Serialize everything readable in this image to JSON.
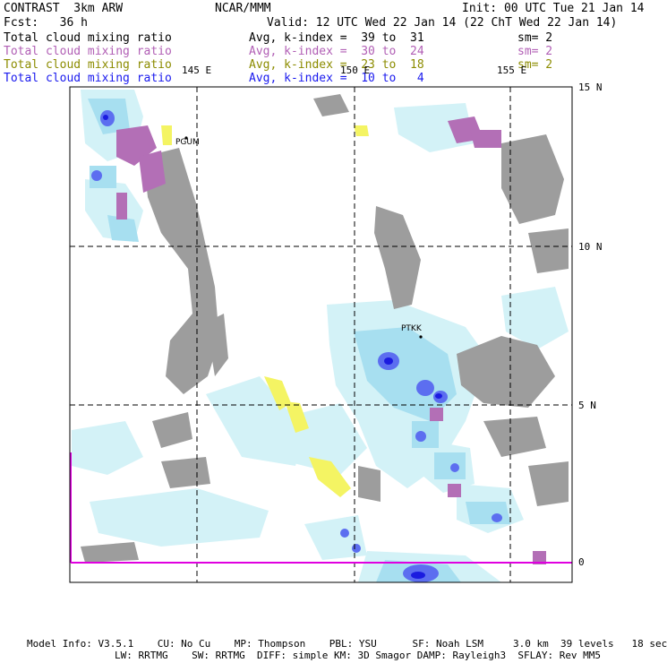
{
  "header": {
    "line1_left": "CONTRAST  3km ARW",
    "line1_mid": "NCAR/MMM",
    "line1_right": "Init: 00 UTC Tue 21 Jan 14",
    "line2_left": "Fcst:   36 h",
    "line2_right": "Valid: 12 UTC Wed 22 Jan 14 (22 ChT Wed 22 Jan 14)"
  },
  "fields": [
    {
      "name": "Total cloud mixing ratio",
      "stat": "Avg, k-index =  39 to  31",
      "sm": "sm= 2",
      "color": "#000000"
    },
    {
      "name": "Total cloud mixing ratio",
      "stat": "Avg, k-index =  30 to  24",
      "sm": "sm= 2",
      "color": "#b15fb5"
    },
    {
      "name": "Total cloud mixing ratio",
      "stat": "Avg, k-index =  23 to  18",
      "sm": "sm= 2",
      "color": "#8c8c00"
    },
    {
      "name": "Total cloud mixing ratio",
      "stat": "Avg, k-index =  10 to   4",
      "sm": "",
      "color": "#1a1aee"
    }
  ],
  "map": {
    "lon_labels": [
      "145 E",
      "150 E",
      "155 E"
    ],
    "lat_labels": [
      "15 N",
      "10 N",
      "5 N",
      "0"
    ],
    "stations": [
      "PGUM",
      "PTKK"
    ]
  },
  "footer": {
    "line1": "Model Info: V3.5.1    CU: No Cu    MP: Thompson    PBL: YSU      SF: Noah LSM     3.0 km  39 levels   18 sec",
    "line2": "LW: RRTMG    SW: RRTMG  DIFF: simple KM: 3D Smagor DAMP: Rayleigh3  SFLAY: Rev MM5"
  }
}
